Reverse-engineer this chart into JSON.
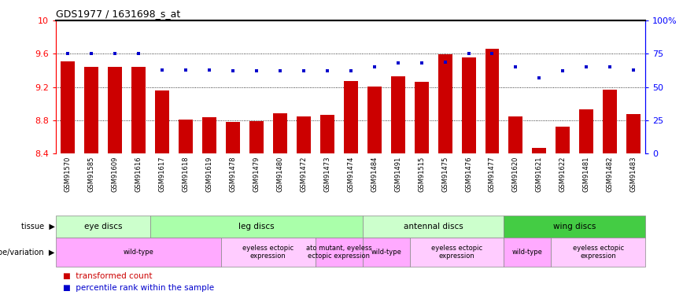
{
  "title": "GDS1977 / 1631698_s_at",
  "samples": [
    "GSM91570",
    "GSM91585",
    "GSM91609",
    "GSM91616",
    "GSM91617",
    "GSM91618",
    "GSM91619",
    "GSM91478",
    "GSM91479",
    "GSM91480",
    "GSM91472",
    "GSM91473",
    "GSM91474",
    "GSM91484",
    "GSM91491",
    "GSM91515",
    "GSM91475",
    "GSM91476",
    "GSM91477",
    "GSM91620",
    "GSM91621",
    "GSM91622",
    "GSM91481",
    "GSM91482",
    "GSM91483"
  ],
  "bar_values": [
    9.51,
    9.44,
    9.44,
    9.44,
    9.16,
    8.81,
    8.84,
    8.78,
    8.79,
    8.88,
    8.85,
    8.86,
    9.27,
    9.21,
    9.33,
    9.26,
    9.59,
    9.56,
    9.66,
    8.85,
    8.47,
    8.72,
    8.93,
    9.17,
    8.87
  ],
  "dot_values": [
    75,
    75,
    75,
    75,
    63,
    63,
    63,
    62,
    62,
    62,
    62,
    62,
    62,
    65,
    68,
    68,
    69,
    75,
    75,
    65,
    57,
    62,
    65,
    65,
    63
  ],
  "ylim": [
    8.4,
    10.0
  ],
  "yticks_left": [
    8.4,
    8.8,
    9.2,
    9.6,
    10.0
  ],
  "ytick_labels_left": [
    "8.4",
    "8.8",
    "9.2",
    "9.6",
    "10"
  ],
  "yticks_right": [
    0,
    25,
    50,
    75,
    100
  ],
  "ytick_labels_right": [
    "0",
    "25",
    "50",
    "75",
    "100%"
  ],
  "bar_color": "#cc0000",
  "dot_color": "#0000cc",
  "dotted_lines": [
    8.8,
    9.2,
    9.6
  ],
  "tissue_groups": [
    {
      "label": "eye discs",
      "start": 0,
      "end": 4,
      "color": "#ccffcc"
    },
    {
      "label": "leg discs",
      "start": 4,
      "end": 13,
      "color": "#aaffaa"
    },
    {
      "label": "antennal discs",
      "start": 13,
      "end": 19,
      "color": "#ccffcc"
    },
    {
      "label": "wing discs",
      "start": 19,
      "end": 25,
      "color": "#44cc44"
    }
  ],
  "genotype_groups": [
    {
      "label": "wild-type",
      "start": 0,
      "end": 7,
      "color": "#ffaaff"
    },
    {
      "label": "eyeless ectopic\nexpression",
      "start": 7,
      "end": 11,
      "color": "#ffccff"
    },
    {
      "label": "ato mutant, eyeless\nectopic expression",
      "start": 11,
      "end": 13,
      "color": "#ffaaff"
    },
    {
      "label": "wild-type",
      "start": 13,
      "end": 15,
      "color": "#ffaaff"
    },
    {
      "label": "eyeless ectopic\nexpression",
      "start": 15,
      "end": 19,
      "color": "#ffccff"
    },
    {
      "label": "wild-type",
      "start": 19,
      "end": 21,
      "color": "#ffaaff"
    },
    {
      "label": "eyeless ectopic\nexpression",
      "start": 21,
      "end": 25,
      "color": "#ffccff"
    }
  ],
  "plot_bg": "#ffffff",
  "fig_bg": "#ffffff",
  "xtick_bg": "#d8d8d8"
}
